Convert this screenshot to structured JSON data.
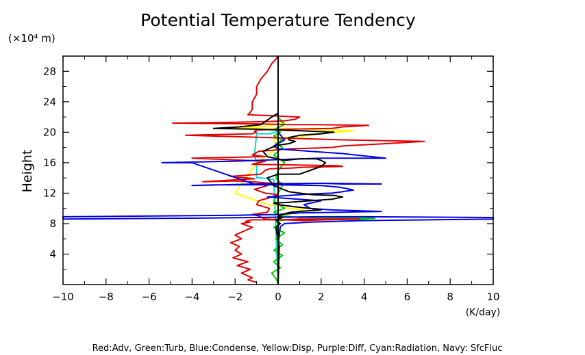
{
  "chart_data": {
    "type": "line",
    "title": "Potential Temperature Tendency",
    "y_unit_label": "(×10⁴ m)",
    "xlabel": "(K/day)",
    "ylabel": "Height",
    "xlim": [
      -10,
      10
    ],
    "ylim": [
      0,
      30
    ],
    "x_ticks": [
      -10,
      -8,
      -6,
      -4,
      -2,
      0,
      2,
      4,
      6,
      8,
      10
    ],
    "y_ticks": [
      4,
      8,
      12,
      16,
      20,
      24,
      28
    ],
    "legend_text": "Red:Adv, Green:Turb, Blue:Condense, Yellow:Disp, Purple:Diff, Cyan:Radiation, Navy: SfcFluc",
    "grid": false,
    "series": [
      {
        "name": "Adv",
        "color": "#e00000",
        "x": [
          -1.0,
          -1.4,
          -1.2,
          -1.7,
          -1.3,
          -1.9,
          -1.4,
          -2.1,
          -1.7,
          -2.0,
          -1.8,
          -2.2,
          -1.7,
          -2.0,
          -1.6,
          -1.2,
          -1.7,
          -1.3,
          -1.5,
          -1.4,
          -1.2,
          0.1,
          1.0,
          2.0,
          3.8,
          2.2,
          1.2,
          -0.6,
          -0.9,
          -1.2,
          -0.5,
          -0.4,
          -1.0,
          -0.9,
          -0.3,
          0.0,
          -0.6,
          -1.1,
          -0.5,
          -0.8,
          0.2,
          -0.4,
          -1.2,
          -2.0,
          -3.5,
          -1.1,
          -2.2,
          -0.8,
          -0.6,
          -0.4,
          0.6,
          1.2,
          3.0,
          2.8,
          -1.2,
          -0.6,
          -4.0,
          -0.6,
          -1.2,
          -0.9,
          0.5,
          2.5,
          3.0,
          5.0,
          6.8,
          3.0,
          -0.5,
          -4.3,
          -1.2,
          -1.0,
          -1.1,
          -1.0,
          0.5,
          2.5,
          3.0,
          4.2,
          1.8,
          0.6,
          -1.0,
          -4.9,
          -2.2,
          -0.5,
          0.3,
          0.8,
          1.0,
          -1.4,
          -1.3,
          -1.2,
          -1.2,
          -1.0,
          -1.0,
          -0.8,
          -0.5,
          -0.3,
          -0.1,
          0.0
        ],
        "y": [
          0.3,
          0.6,
          0.9,
          1.5,
          2.0,
          2.5,
          3.0,
          3.5,
          4.0,
          4.5,
          5.0,
          5.5,
          6.0,
          6.5,
          7.0,
          7.5,
          8.0,
          8.2,
          8.3,
          8.4,
          8.5,
          8.5,
          8.6,
          8.6,
          8.6,
          8.5,
          8.4,
          8.6,
          9.0,
          9.2,
          9.5,
          10.0,
          10.5,
          11.0,
          11.5,
          11.8,
          12.0,
          12.5,
          13.0,
          13.2,
          13.3,
          13.3,
          13.5,
          13.6,
          13.5,
          13.9,
          14.2,
          14.5,
          15.0,
          15.2,
          15.3,
          15.4,
          15.5,
          15.6,
          15.8,
          16.2,
          16.6,
          16.8,
          17.0,
          17.5,
          17.8,
          18.0,
          18.2,
          18.5,
          18.8,
          19.0,
          19.3,
          19.6,
          19.8,
          20.0,
          20.1,
          20.3,
          20.4,
          20.5,
          20.7,
          20.9,
          21.0,
          21.0,
          21.1,
          21.2,
          21.3,
          21.4,
          21.5,
          21.7,
          22.0,
          22.3,
          22.6,
          23.0,
          24.0,
          25.0,
          26.0,
          27.0,
          28.0,
          29.0,
          29.6,
          30.0
        ]
      },
      {
        "name": "Turb",
        "color": "#00cc00",
        "x": [
          0.0,
          -0.1,
          -0.3,
          0.1,
          -0.2,
          0.2,
          -0.2,
          0.2,
          -0.1,
          0.3,
          -0.2,
          0.1,
          -0.1,
          0.0,
          0.5,
          2.0,
          4.0,
          4.5,
          1.0,
          0.2,
          -0.2,
          0.3,
          -0.2,
          0.0,
          0.2,
          -0.1,
          0.0,
          0.3,
          -0.2,
          0.2,
          -0.1,
          0.2,
          -0.2,
          0.1,
          -0.1,
          0.3,
          0.0,
          0.0,
          0.0
        ],
        "y": [
          0.2,
          0.8,
          1.5,
          2.2,
          3.0,
          3.8,
          4.5,
          5.2,
          6.0,
          6.8,
          7.5,
          8.0,
          8.2,
          8.4,
          8.5,
          8.5,
          8.6,
          8.7,
          8.8,
          9.0,
          9.5,
          10.0,
          11.0,
          12.0,
          13.0,
          14.0,
          15.0,
          16.0,
          17.0,
          18.0,
          18.5,
          19.0,
          19.5,
          20.0,
          20.5,
          21.0,
          22.0,
          25.0,
          30.0
        ]
      },
      {
        "name": "Condense",
        "color": "#0000e0",
        "x": [
          0.0,
          0.0,
          0.1,
          0.3,
          1.5,
          4.0,
          10.0,
          10.0,
          4.0,
          2.0,
          -1.0,
          -4.5,
          -10.0,
          -10.0,
          -2.0,
          0.0,
          1.0,
          3.0,
          4.8,
          2.5,
          1.5,
          1.2,
          2.0,
          0.5,
          -0.5,
          0.5,
          1.5,
          2.5,
          3.0,
          3.5,
          3.2,
          2.8,
          2.0,
          0.0,
          -3.0,
          -4.0,
          -1.0,
          2.0,
          3.0,
          4.5,
          4.8,
          2.0,
          0.5,
          -1.0,
          -4.0,
          -5.4,
          -2.0,
          0.0,
          1.0,
          2.0,
          4.0,
          5.0,
          3.0,
          1.5,
          0.0,
          -0.2,
          0.3,
          0.0,
          0.0
        ],
        "y": [
          0.0,
          5.0,
          7.6,
          8.0,
          8.2,
          8.4,
          8.6,
          8.8,
          8.9,
          8.9,
          8.8,
          8.7,
          8.6,
          8.9,
          9.1,
          9.2,
          9.4,
          9.5,
          9.6,
          9.8,
          10.0,
          10.5,
          11.0,
          11.3,
          11.5,
          11.7,
          11.9,
          12.0,
          12.2,
          12.4,
          12.6,
          12.8,
          13.0,
          13.1,
          13.1,
          13.0,
          13.2,
          13.3,
          13.2,
          13.2,
          13.2,
          13.3,
          13.2,
          13.1,
          16.0,
          16.0,
          16.2,
          16.4,
          16.5,
          16.6,
          16.6,
          16.6,
          17.2,
          17.5,
          17.8,
          18.2,
          19.0,
          20.0,
          30.0
        ]
      },
      {
        "name": "Disp",
        "color": "#ffff00",
        "x": [
          0.0,
          0.0,
          0.3,
          0.8,
          1.2,
          0.5,
          0.0,
          -0.5,
          -1.0,
          -2.0,
          -1.0,
          0.0,
          -0.2,
          0.2,
          1.2,
          2.0,
          3.5,
          2.0,
          0.5,
          -2.0,
          -0.5,
          0.3,
          0.0,
          0.0,
          0.0
        ],
        "y": [
          0.0,
          8.8,
          9.0,
          9.5,
          9.8,
          10.0,
          10.3,
          10.5,
          11.0,
          12.0,
          16.0,
          18.0,
          19.0,
          19.3,
          19.5,
          19.8,
          20.2,
          20.3,
          20.5,
          20.5,
          20.8,
          21.2,
          21.5,
          29.0,
          30.0
        ]
      },
      {
        "name": "Diff",
        "color": "#8800aa",
        "x": [
          0.0,
          0.0
        ],
        "y": [
          0.0,
          30.0
        ]
      },
      {
        "name": "Radiation",
        "color": "#00d8d8",
        "x": [
          0.0,
          -0.2,
          -0.8,
          -1.0,
          -1.0,
          -1.1,
          -1.0,
          -0.4,
          0.0,
          0.0
        ],
        "y": [
          0.0,
          13.8,
          14.0,
          14.0,
          16.0,
          17.0,
          19.8,
          19.8,
          20.1,
          30.0
        ]
      },
      {
        "name": "SfcFluc",
        "color": "#000080",
        "x": [
          0.0,
          0.0
        ],
        "y": [
          0.0,
          30.0
        ]
      },
      {
        "name": "Total",
        "color": "#000000",
        "x": [
          0.0,
          0.05,
          -0.1,
          0.1,
          -0.1,
          0.2,
          0.0,
          0.3,
          0.6,
          1.0,
          1.5,
          2.0,
          1.5,
          0.8,
          0.0,
          -0.2,
          0.5,
          1.5,
          2.5,
          3.0,
          2.6,
          1.6,
          1.0,
          0.5,
          -0.2,
          -0.5,
          0.0,
          1.0,
          1.5,
          2.0,
          2.2,
          2.0,
          1.8,
          1.0,
          0.3,
          -0.5,
          -0.7,
          -0.3,
          0.0,
          0.5,
          0.8,
          0.5,
          0.5,
          1.0,
          2.0,
          2.6,
          1.0,
          -1.0,
          -3.0,
          -1.8,
          -0.8,
          -0.6,
          -0.3,
          0.0,
          0.0
        ],
        "y": [
          0.0,
          5.0,
          7.5,
          8.0,
          8.5,
          8.8,
          9.0,
          9.3,
          9.5,
          9.6,
          9.7,
          9.8,
          10.0,
          10.2,
          10.5,
          10.7,
          10.8,
          11.0,
          11.2,
          11.5,
          11.7,
          11.8,
          12.0,
          12.2,
          13.0,
          14.0,
          14.5,
          14.5,
          15.0,
          15.5,
          16.0,
          16.3,
          16.5,
          16.5,
          16.3,
          16.8,
          17.5,
          18.0,
          18.3,
          18.5,
          18.8,
          19.0,
          19.3,
          19.6,
          19.8,
          20.0,
          20.2,
          20.4,
          20.5,
          20.7,
          21.0,
          21.4,
          22.0,
          22.5,
          30.0
        ]
      }
    ]
  }
}
